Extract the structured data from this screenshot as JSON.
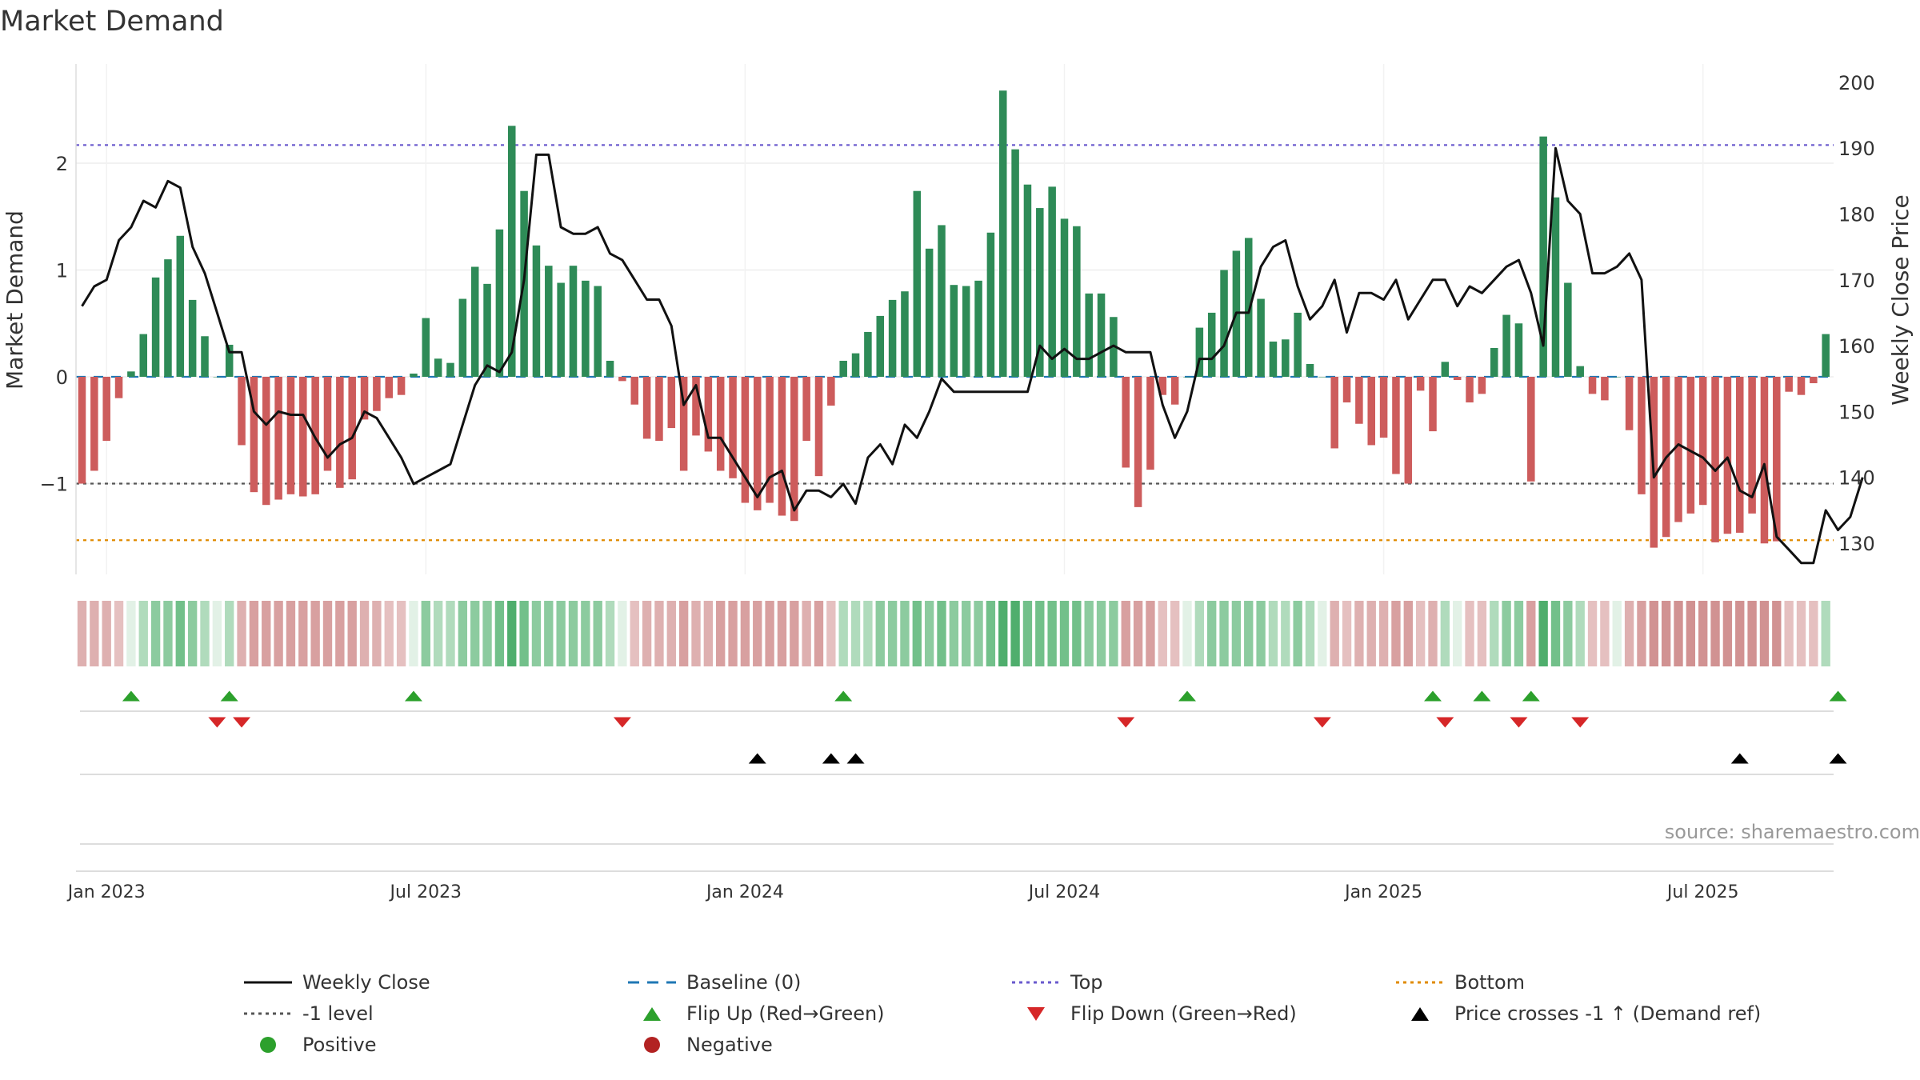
{
  "chart_data": {
    "type": "bar+line",
    "title": "Market Demand",
    "source": "source: sharemaestro.com",
    "ylabel_left": "Market Demand",
    "ylabel_right": "Weekly Close Price",
    "ylim_left": [
      -1.9,
      2.9
    ],
    "ylim_right": [
      126,
      203
    ],
    "yticks_left": [
      {
        "value": 2,
        "label": "2"
      },
      {
        "value": 1,
        "label": "1"
      },
      {
        "value": 0,
        "label": "0"
      },
      {
        "value": -1,
        "label": "−1"
      }
    ],
    "yticks_right": [
      200,
      190,
      180,
      170,
      160,
      150,
      140,
      130
    ],
    "x_ticks": [
      {
        "week": 2,
        "label": "Jan 2023"
      },
      {
        "week": 28,
        "label": "Jul 2023"
      },
      {
        "week": 54,
        "label": "Jan 2024"
      },
      {
        "week": 80,
        "label": "Jul 2024"
      },
      {
        "week": 106,
        "label": "Jan 2025"
      },
      {
        "week": 132,
        "label": "Jul 2025"
      }
    ],
    "reference_lines": {
      "top": 2.17,
      "bottom": -1.53,
      "minus_one": -1,
      "baseline": 0
    },
    "demand": [
      -1.0,
      -0.88,
      -0.6,
      -0.2,
      0.05,
      0.4,
      0.93,
      1.1,
      1.32,
      0.72,
      0.38,
      0.0,
      0.3,
      -0.64,
      -1.08,
      -1.2,
      -1.15,
      -1.1,
      -1.12,
      -1.1,
      -0.88,
      -1.04,
      -0.96,
      -0.4,
      -0.32,
      -0.2,
      -0.17,
      0.03,
      0.55,
      0.17,
      0.13,
      0.73,
      1.03,
      0.87,
      1.38,
      2.35,
      1.74,
      1.23,
      1.04,
      0.88,
      1.04,
      0.9,
      0.85,
      0.15,
      -0.04,
      -0.26,
      -0.58,
      -0.6,
      -0.48,
      -0.88,
      -0.55,
      -0.7,
      -0.88,
      -0.95,
      -1.18,
      -1.25,
      -1.18,
      -1.3,
      -1.35,
      -0.6,
      -0.93,
      -0.27,
      0.15,
      0.22,
      0.42,
      0.57,
      0.72,
      0.8,
      1.74,
      1.2,
      1.42,
      0.86,
      0.85,
      0.9,
      1.35,
      2.68,
      2.13,
      1.8,
      1.58,
      1.78,
      1.48,
      1.41,
      0.78,
      0.78,
      0.56,
      -0.85,
      -1.22,
      -0.87,
      -0.17,
      -0.26,
      0.0,
      0.46,
      0.6,
      1.0,
      1.18,
      1.3,
      0.73,
      0.33,
      0.35,
      0.6,
      0.12,
      0.0,
      -0.67,
      -0.24,
      -0.44,
      -0.64,
      -0.57,
      -0.91,
      -1.0,
      -0.13,
      -0.51,
      0.14,
      -0.03,
      -0.24,
      -0.16,
      0.27,
      0.58,
      0.5,
      -0.98,
      2.25,
      1.68,
      0.88,
      0.1,
      -0.16,
      -0.22,
      0.0,
      -0.5,
      -1.1,
      -1.6,
      -1.5,
      -1.36,
      -1.28,
      -1.2,
      -1.55,
      -1.47,
      -1.46,
      -1.28,
      -1.56,
      -1.54,
      -0.14,
      -0.17,
      -0.06,
      0.4
    ],
    "price": [
      166,
      169,
      170,
      176,
      178,
      182,
      181,
      185,
      184,
      175,
      171,
      165,
      159,
      159,
      150,
      148,
      150,
      149.5,
      149.5,
      146,
      143,
      145,
      146,
      150,
      149,
      146,
      143,
      139,
      140,
      141,
      142,
      148,
      154,
      157,
      156,
      159,
      170,
      189,
      189,
      178,
      177,
      177,
      178,
      174,
      173,
      170,
      167,
      167,
      163,
      151,
      154,
      146,
      146,
      143,
      140,
      137,
      140,
      141,
      135,
      138,
      138,
      137,
      139,
      136,
      143,
      145,
      142,
      148,
      146,
      150,
      155,
      153,
      153,
      153,
      153,
      153,
      153,
      153,
      160,
      158,
      159.5,
      158,
      158,
      159,
      160,
      159,
      159,
      159,
      151,
      146,
      150,
      158,
      158,
      160,
      165,
      165,
      172,
      175,
      176,
      169,
      164,
      166,
      170,
      162,
      168,
      168,
      167,
      170,
      164,
      167,
      170,
      170,
      166,
      169,
      168,
      170,
      172,
      173,
      168,
      160,
      190,
      182,
      180,
      171,
      171,
      172,
      174,
      170,
      140,
      143,
      145,
      144,
      143,
      141,
      143,
      138,
      137,
      142,
      131,
      129,
      127,
      127,
      135,
      132,
      134,
      140
    ],
    "heat_levels": [
      -2,
      -2,
      -2,
      -1,
      0,
      1,
      2,
      2,
      3,
      2,
      1,
      0,
      1,
      -2,
      -3,
      -3,
      -3,
      -3,
      -3,
      -3,
      -3,
      -3,
      -3,
      -2,
      -2,
      -1,
      -1,
      0,
      2,
      1,
      1,
      2,
      2,
      2,
      3,
      4,
      3,
      2,
      2,
      2,
      2,
      2,
      2,
      1,
      0,
      -1,
      -2,
      -2,
      -2,
      -3,
      -2,
      -2,
      -3,
      -3,
      -3,
      -3,
      -3,
      -3,
      -3,
      -2,
      -3,
      -1,
      1,
      1,
      1,
      2,
      2,
      2,
      3,
      2,
      3,
      2,
      2,
      2,
      3,
      4,
      4,
      3,
      3,
      3,
      3,
      3,
      2,
      2,
      2,
      -3,
      -3,
      -3,
      -1,
      -1,
      0,
      1,
      2,
      2,
      2,
      2,
      2,
      1,
      1,
      2,
      1,
      0,
      -2,
      -1,
      -2,
      -2,
      -2,
      -3,
      -3,
      -1,
      -2,
      1,
      0,
      -1,
      -1,
      1,
      2,
      2,
      -3,
      4,
      3,
      2,
      1,
      -1,
      -1,
      0,
      -2,
      -3,
      -4,
      -4,
      -4,
      -4,
      -4,
      -4,
      -4,
      -4,
      -4,
      -4,
      -4,
      -1,
      -1,
      -1,
      1
    ],
    "flip_up_weeks": [
      4,
      12,
      27,
      62,
      90,
      110,
      114,
      118,
      143
    ],
    "flip_down_weeks": [
      11,
      13,
      44,
      85,
      101,
      111,
      117,
      122
    ],
    "price_cross_weeks": [
      55,
      61,
      63,
      135,
      143
    ],
    "series": [
      {
        "name": "Weekly Close",
        "color": "#111111"
      },
      {
        "name": "Positive",
        "color": "#2e8b57"
      },
      {
        "name": "Negative",
        "color": "#cd5c5c"
      }
    ],
    "legend": [
      {
        "label": "Weekly Close",
        "symbol": "line",
        "color": "#111111"
      },
      {
        "label": "Baseline (0)",
        "symbol": "dash",
        "color": "#1f77b4"
      },
      {
        "label": "Top",
        "symbol": "dot",
        "color": "#6a5acd"
      },
      {
        "label": "Bottom",
        "symbol": "dot",
        "color": "#e08b00"
      },
      {
        "label": "-1 level",
        "symbol": "dot",
        "color": "#555555"
      },
      {
        "label": "Flip Up (Red→Green)",
        "symbol": "tri-up",
        "color": "#2ca02c"
      },
      {
        "label": "Flip Down (Green→Red)",
        "symbol": "tri-down",
        "color": "#d62728"
      },
      {
        "label": "Price crosses -1 ↑ (Demand ref)",
        "symbol": "tri-up",
        "color": "#000000"
      },
      {
        "label": "Positive",
        "symbol": "circle",
        "color": "#2ca02c"
      },
      {
        "label": "Negative",
        "symbol": "circle",
        "color": "#b22222"
      }
    ]
  }
}
